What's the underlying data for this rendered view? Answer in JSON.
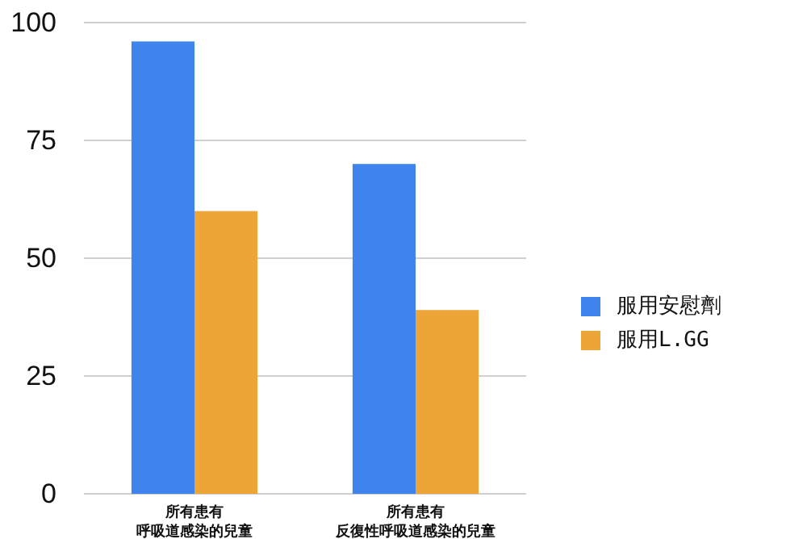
{
  "chart_data": {
    "type": "bar",
    "categories": [
      "所有患有呼吸道感染的兒童",
      "所有患有反復性呼吸道感染的兒童"
    ],
    "series": [
      {
        "name": "服用安慰劑",
        "color": "#3f84ec",
        "values": [
          96,
          70
        ]
      },
      {
        "name": "服用L.GG",
        "color": "#eca536",
        "values": [
          60,
          39
        ]
      }
    ],
    "ylim": [
      0,
      100
    ],
    "yticks": [
      0,
      25,
      50,
      75,
      100
    ],
    "grid": "y",
    "legend": "right"
  }
}
